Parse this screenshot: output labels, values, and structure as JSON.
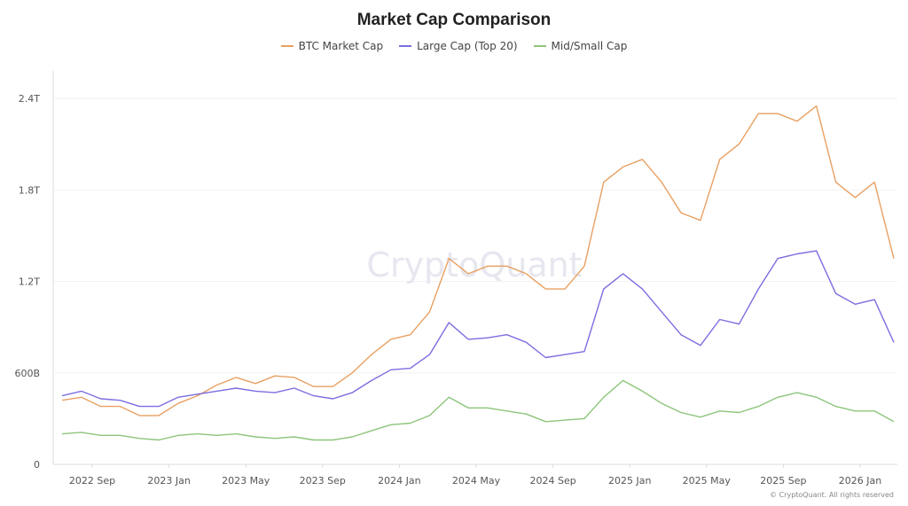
{
  "chart_data": {
    "type": "line",
    "title": "Market Cap Comparison",
    "xlabel": "",
    "ylabel": "",
    "ylim": [
      0,
      2.5
    ],
    "y_unit": "trillion USD",
    "y_ticks": [
      {
        "v": 0,
        "label": "0"
      },
      {
        "v": 0.6,
        "label": "600B"
      },
      {
        "v": 1.2,
        "label": "1.2T"
      },
      {
        "v": 1.8,
        "label": "1.8T"
      },
      {
        "v": 2.4,
        "label": "2.4T"
      }
    ],
    "x_ticks": [
      "2022 Sep",
      "2023 Jan",
      "2023 May",
      "2023 Sep",
      "2024 Jan",
      "2024 May",
      "2024 Sep",
      "2025 Jan",
      "2025 May",
      "2025 Sep",
      "2026 Jan"
    ],
    "xlim": [
      "2022-07",
      "2026-02"
    ],
    "grid": true,
    "legend_placement": "top",
    "x": [
      "2022-07",
      "2022-08",
      "2022-09",
      "2022-10",
      "2022-11",
      "2022-12",
      "2023-01",
      "2023-02",
      "2023-03",
      "2023-04",
      "2023-05",
      "2023-06",
      "2023-07",
      "2023-08",
      "2023-09",
      "2023-10",
      "2023-11",
      "2023-12",
      "2024-01",
      "2024-02",
      "2024-03",
      "2024-04",
      "2024-05",
      "2024-06",
      "2024-07",
      "2024-08",
      "2024-09",
      "2024-10",
      "2024-11",
      "2024-12",
      "2025-01",
      "2025-02",
      "2025-03",
      "2025-04",
      "2025-05",
      "2025-06",
      "2025-07",
      "2025-08",
      "2025-09",
      "2025-10",
      "2025-11",
      "2025-12",
      "2026-01",
      "2026-02"
    ],
    "series": [
      {
        "name": "BTC Market Cap",
        "color": "#e8a062",
        "values": [
          0.42,
          0.44,
          0.38,
          0.38,
          0.32,
          0.32,
          0.4,
          0.45,
          0.52,
          0.57,
          0.53,
          0.58,
          0.57,
          0.51,
          0.51,
          0.6,
          0.72,
          0.82,
          0.85,
          1.0,
          1.35,
          1.25,
          1.3,
          1.3,
          1.25,
          1.15,
          1.15,
          1.3,
          1.85,
          1.95,
          2.0,
          1.85,
          1.65,
          1.6,
          2.0,
          2.1,
          2.3,
          2.3,
          2.25,
          2.35,
          1.85,
          1.75,
          1.85,
          1.35
        ]
      },
      {
        "name": "Large Cap (Top 20)",
        "color": "#7b6ee0",
        "values": [
          0.45,
          0.48,
          0.43,
          0.42,
          0.38,
          0.38,
          0.44,
          0.46,
          0.48,
          0.5,
          0.48,
          0.47,
          0.5,
          0.45,
          0.43,
          0.47,
          0.55,
          0.62,
          0.63,
          0.72,
          0.93,
          0.82,
          0.83,
          0.85,
          0.8,
          0.7,
          0.72,
          0.74,
          1.15,
          1.25,
          1.15,
          1.0,
          0.85,
          0.78,
          0.95,
          0.92,
          1.15,
          1.35,
          1.38,
          1.4,
          1.12,
          1.05,
          1.08,
          0.8
        ]
      },
      {
        "name": "Mid/Small Cap",
        "color": "#8cc57a",
        "values": [
          0.2,
          0.21,
          0.19,
          0.19,
          0.17,
          0.16,
          0.19,
          0.2,
          0.19,
          0.2,
          0.18,
          0.17,
          0.18,
          0.16,
          0.16,
          0.18,
          0.22,
          0.26,
          0.27,
          0.32,
          0.44,
          0.37,
          0.37,
          0.35,
          0.33,
          0.28,
          0.29,
          0.3,
          0.44,
          0.55,
          0.48,
          0.4,
          0.34,
          0.31,
          0.35,
          0.34,
          0.38,
          0.44,
          0.47,
          0.44,
          0.38,
          0.35,
          0.35,
          0.28
        ]
      }
    ]
  },
  "watermark": "CryptoQuant",
  "footer": "© CryptoQuant. All rights reserved"
}
